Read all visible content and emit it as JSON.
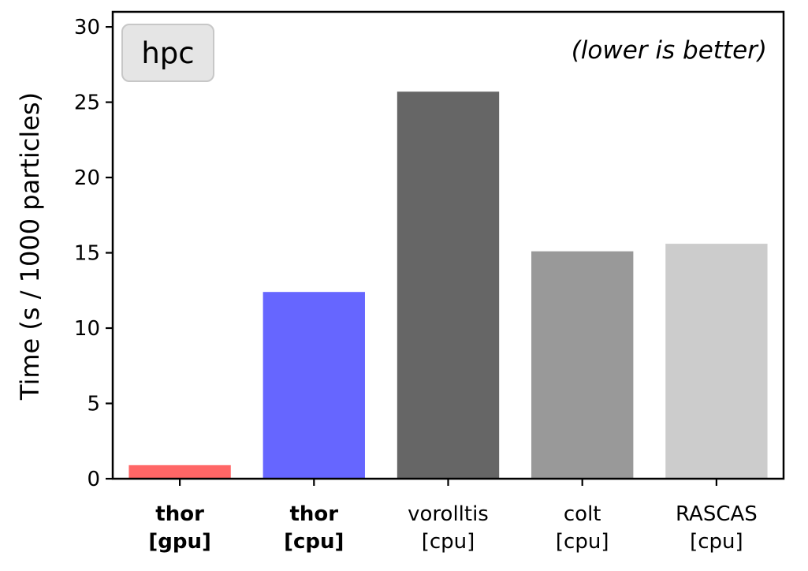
{
  "chart_data": {
    "type": "bar",
    "badge": "hpc",
    "annotation": "(lower is better)",
    "ylabel": "Time (s / 1000 particles)",
    "xlabel": "",
    "ylim": [
      0,
      31
    ],
    "yticks": [
      0,
      5,
      10,
      15,
      20,
      25,
      30
    ],
    "grid": false,
    "categories": [
      {
        "name": "thor",
        "device": "[gpu]",
        "bold": true
      },
      {
        "name": "thor",
        "device": "[cpu]",
        "bold": true
      },
      {
        "name": "vorolltis",
        "device": "[cpu]",
        "bold": false
      },
      {
        "name": "colt",
        "device": "[cpu]",
        "bold": false
      },
      {
        "name": "RASCAS",
        "device": "[cpu]",
        "bold": false
      }
    ],
    "values": [
      0.9,
      12.4,
      25.7,
      15.1,
      15.6
    ],
    "colors": [
      "#ff6666",
      "#6666ff",
      "#666666",
      "#999999",
      "#cccccc"
    ]
  }
}
